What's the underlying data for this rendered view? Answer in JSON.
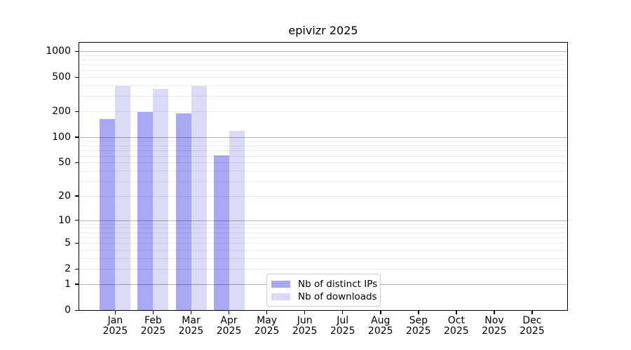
{
  "title": "epivizr 2025",
  "chart_data": {
    "type": "bar",
    "title": "epivizr 2025",
    "year": "2025",
    "months": [
      "Jan",
      "Feb",
      "Mar",
      "Apr",
      "May",
      "Jun",
      "Jul",
      "Aug",
      "Sep",
      "Oct",
      "Nov",
      "Dec"
    ],
    "series": [
      {
        "name": "Nb of distinct IPs",
        "color": "#a8a8f5",
        "values": [
          163,
          196,
          189,
          61,
          0,
          0,
          0,
          0,
          0,
          0,
          0,
          0
        ]
      },
      {
        "name": "Nb of downloads",
        "color": "#dbdbf8",
        "values": [
          393,
          362,
          393,
          118,
          0,
          0,
          0,
          0,
          0,
          0,
          0,
          0
        ]
      }
    ],
    "yscale": "log1p",
    "ylim": [
      0,
      1255
    ],
    "yticks": [
      1000,
      500,
      200,
      100,
      50,
      20,
      10,
      5,
      2,
      1,
      0
    ],
    "grid": "horizontal, minor + major (major at powers of 10)",
    "legend_position": "bottom-center"
  },
  "colors": {
    "major_grid": "rgba(0,0,0,0.30)",
    "minor_grid": "rgba(0,0,0,0.08)",
    "spine": "#000000",
    "legend_border": "#cccccc",
    "background": "#ffffff"
  }
}
